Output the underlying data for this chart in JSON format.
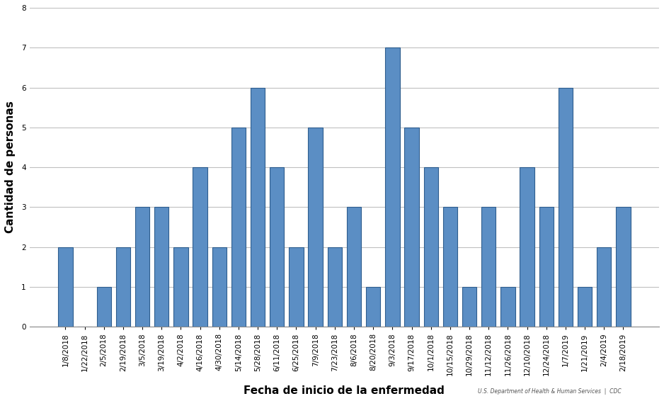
{
  "categories": [
    "1/8/2018",
    "1/22/2018",
    "2/5/2018",
    "2/19/2018",
    "3/5/2018",
    "3/19/2018",
    "4/2/2018",
    "4/16/2018",
    "4/30/2018",
    "5/14/2018",
    "5/28/2018",
    "6/11/2018",
    "6/25/2018",
    "7/9/2018",
    "7/23/2018",
    "8/6/2018",
    "8/20/2018",
    "9/3/2018",
    "9/17/2018",
    "10/1/2018",
    "10/15/2018",
    "10/29/2018",
    "11/12/2018",
    "11/26/2018",
    "12/10/2018",
    "12/24/2018",
    "1/7/2019",
    "1/21/2019",
    "2/4/2019",
    "2/18/2019"
  ],
  "values": [
    2,
    0,
    1,
    2,
    3,
    3,
    2,
    4,
    2,
    5,
    6,
    4,
    2,
    5,
    2,
    3,
    1,
    7,
    5,
    4,
    3,
    1,
    3,
    1,
    4,
    3,
    6,
    1,
    2,
    3
  ],
  "bar_color": "#5B8EC4",
  "bar_edgecolor": "#2E5D8E",
  "ylabel": "Cantidad de personas",
  "xlabel": "Fecha de inicio de la enfermedad",
  "ylim": [
    0,
    8
  ],
  "yticks": [
    0,
    1,
    2,
    3,
    4,
    5,
    6,
    7,
    8
  ],
  "grid_color": "#c0c0c0",
  "background_color": "#ffffff",
  "ylabel_fontsize": 11,
  "xlabel_fontsize": 11,
  "tick_fontsize": 7.5
}
